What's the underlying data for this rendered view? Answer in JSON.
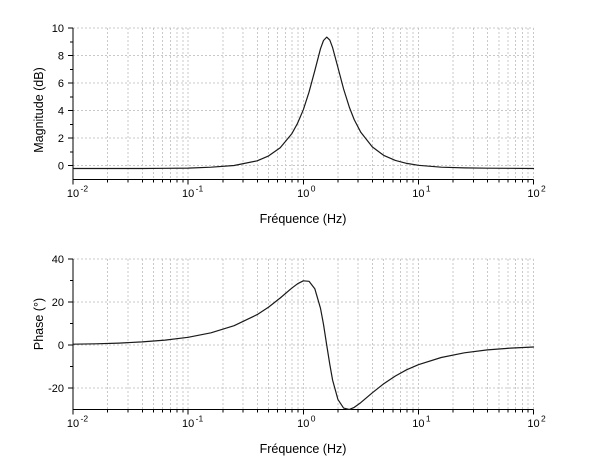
{
  "figure": {
    "background": "#ffffff"
  },
  "colors": {
    "curve": "#1a1a1a",
    "grid": "#c9c9c9",
    "axis": "#000000",
    "text": "#000000"
  },
  "chart_data": [
    {
      "type": "line",
      "title": "",
      "xlabel": "Fréquence (Hz)",
      "ylabel": "Magnitude (dB)",
      "xscale": "log",
      "xlim": [
        0.01,
        100
      ],
      "ylim": [
        -1,
        10
      ],
      "grid": true,
      "legend": false,
      "xtick_exponents": [
        -2,
        -1,
        0,
        1,
        2
      ],
      "yticks_major": [
        0,
        2,
        4,
        6,
        8,
        10
      ],
      "yticks_minor": [
        1,
        3,
        5,
        7,
        9
      ],
      "series": [
        {
          "name": "magnitude",
          "x": [
            0.01,
            0.0158,
            0.0251,
            0.0398,
            0.0631,
            0.1,
            0.158,
            0.251,
            0.398,
            0.5,
            0.631,
            0.794,
            0.891,
            1.0,
            1.122,
            1.259,
            1.413,
            1.5,
            1.6,
            1.7,
            1.8,
            2.0,
            2.24,
            2.51,
            2.77,
            3.16,
            3.98,
            5.01,
            6.31,
            7.94,
            10,
            15.8,
            25.1,
            39.8,
            63.1,
            100
          ],
          "y": [
            -0.2,
            -0.2,
            -0.2,
            -0.2,
            -0.19,
            -0.17,
            -0.11,
            0.02,
            0.36,
            0.71,
            1.3,
            2.31,
            3.07,
            4.06,
            5.34,
            6.9,
            8.5,
            9.09,
            9.34,
            9.12,
            8.58,
            7.14,
            5.57,
            4.26,
            3.35,
            2.43,
            1.37,
            0.75,
            0.39,
            0.17,
            0.03,
            -0.11,
            -0.16,
            -0.18,
            -0.19,
            -0.2
          ]
        }
      ],
      "annotations": {
        "peak_value_db": 9.4,
        "peak_frequency_hz": 1.6
      }
    },
    {
      "type": "line",
      "title": "",
      "xlabel": "Fréquence (Hz)",
      "ylabel": "Phase (°)",
      "xscale": "log",
      "xlim": [
        0.01,
        100
      ],
      "ylim": [
        -30,
        40
      ],
      "grid": true,
      "legend": false,
      "xtick_exponents": [
        -2,
        -1,
        0,
        1,
        2
      ],
      "yticks_major": [
        -20,
        0,
        20,
        40
      ],
      "yticks_minor": [
        -10,
        10,
        30
      ],
      "series": [
        {
          "name": "phase",
          "x": [
            0.01,
            0.0158,
            0.0251,
            0.0398,
            0.0631,
            0.1,
            0.158,
            0.251,
            0.398,
            0.5,
            0.631,
            0.794,
            0.891,
            1.0,
            1.122,
            1.259,
            1.413,
            1.5,
            1.6,
            1.7,
            1.8,
            2.0,
            2.24,
            2.51,
            2.77,
            3.16,
            3.98,
            5.01,
            6.31,
            7.94,
            10,
            15.8,
            25.1,
            39.8,
            63.1,
            100
          ],
          "y": [
            0.36,
            0.57,
            0.9,
            1.43,
            2.26,
            3.58,
            5.68,
            8.98,
            14.14,
            17.63,
            21.87,
            26.42,
            28.48,
            29.84,
            29.61,
            26.18,
            17.06,
            9.57,
            0.0,
            -9.02,
            -16.34,
            -25.29,
            -29.34,
            -29.94,
            -29.0,
            -26.8,
            -22.24,
            -17.99,
            -14.4,
            -11.49,
            -9.15,
            -5.8,
            -3.65,
            -2.3,
            -1.45,
            -0.92
          ]
        }
      ],
      "annotations": {
        "max_phase_deg": 30,
        "min_phase_deg": -30
      }
    }
  ]
}
